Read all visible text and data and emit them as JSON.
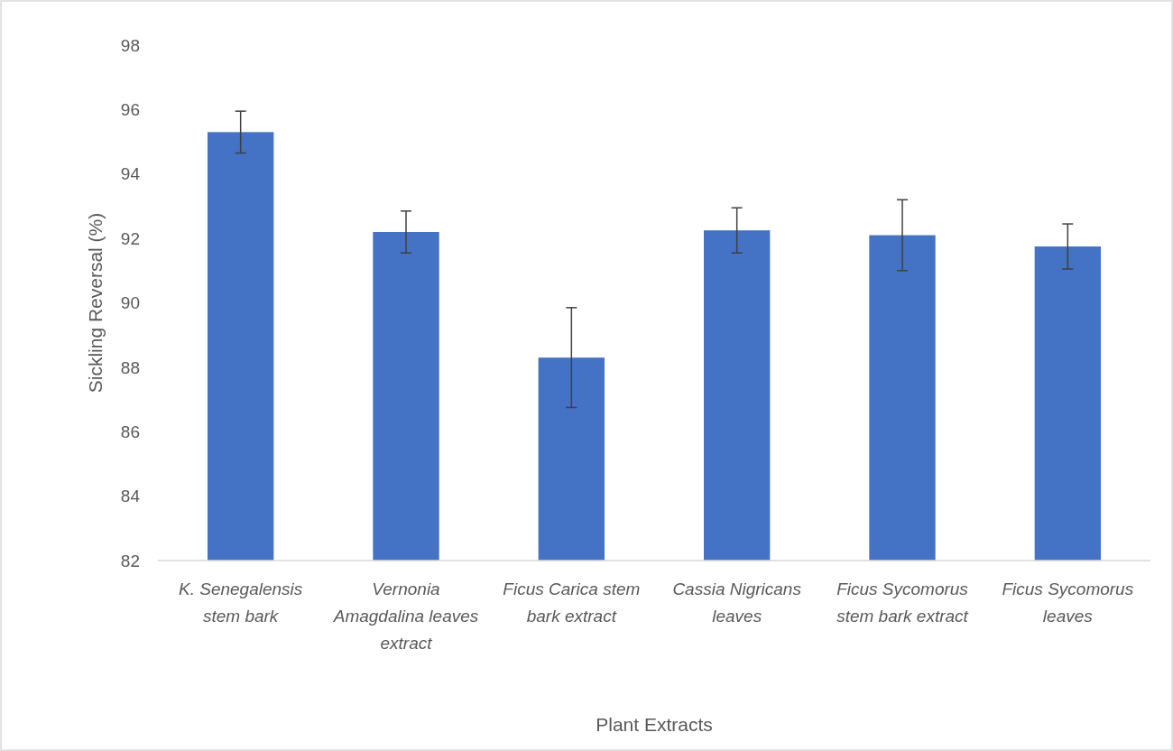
{
  "chart_data": {
    "type": "bar",
    "xlabel": "Plant Extracts",
    "ylabel": "Sickling Reversal (%)",
    "categories": [
      "K. Senegalensis stem bark",
      "Vernonia Amagdalina leaves extract",
      "Ficus Carica stem bark extract",
      "Cassia Nigricans leaves",
      "Ficus Sycomorus stem bark extract",
      "Ficus Sycomorus leaves"
    ],
    "values": [
      95.3,
      92.2,
      88.3,
      92.25,
      92.1,
      91.75
    ],
    "errors": [
      0.65,
      0.65,
      1.55,
      0.7,
      1.1,
      0.7
    ],
    "color": "#4472c4",
    "ylim": [
      82,
      98
    ],
    "yticks": [
      82,
      84,
      86,
      88,
      90,
      92,
      94,
      96,
      98
    ],
    "grid": false
  }
}
